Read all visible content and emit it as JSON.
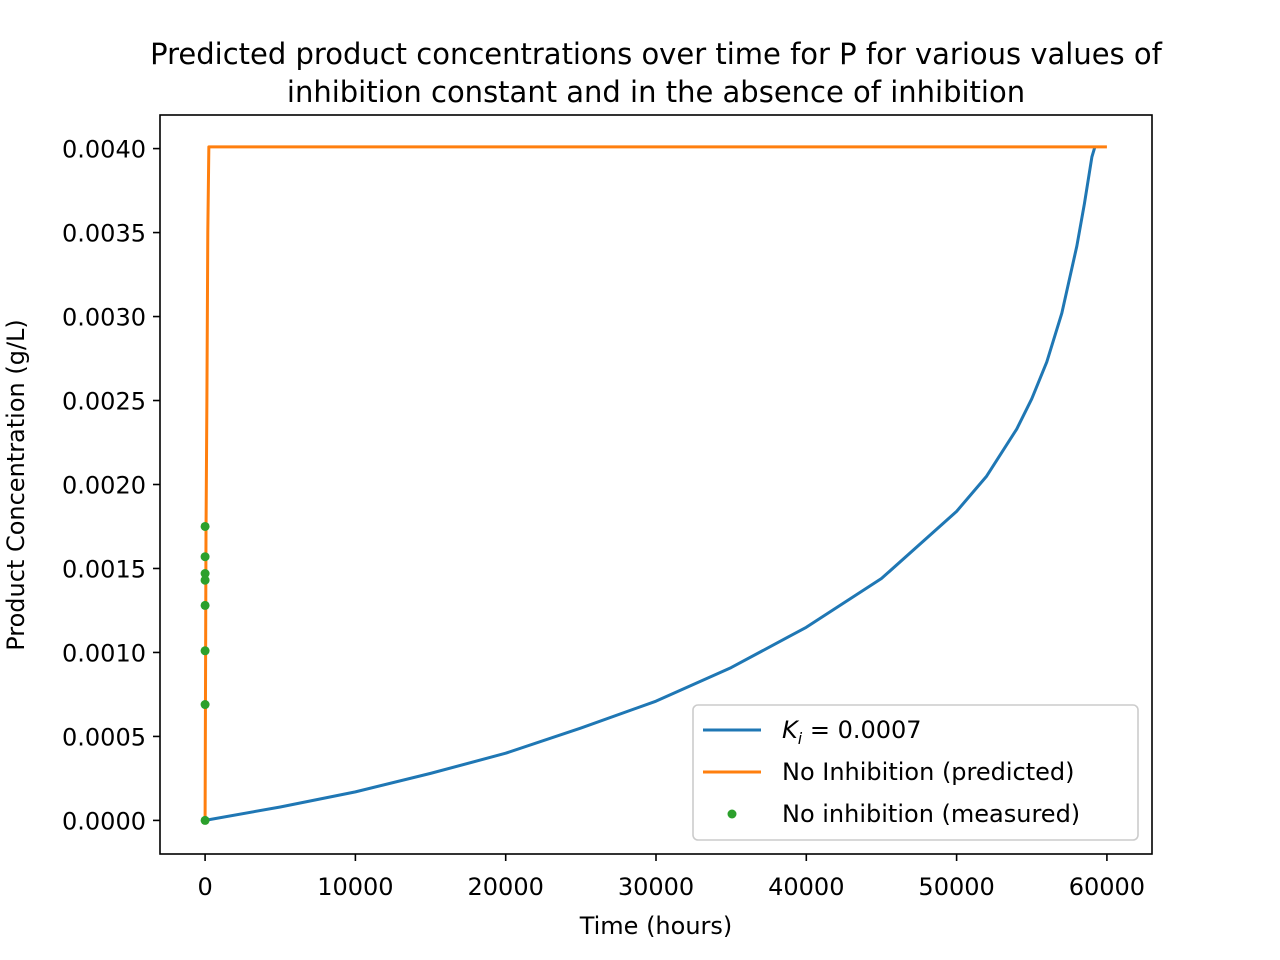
{
  "chart_data": {
    "type": "line",
    "title": [
      "Predicted product concentrations over time for P for various values of",
      "inhibition constant and in the absence of inhibition"
    ],
    "xlabel": "Time (hours)",
    "ylabel": "Product Concentration (g/L)",
    "xlim": [
      -3000,
      63000
    ],
    "ylim": [
      -0.0002,
      0.0042
    ],
    "xticks": [
      0,
      10000,
      20000,
      30000,
      40000,
      50000,
      60000
    ],
    "xtick_labels": [
      "0",
      "10000",
      "20000",
      "30000",
      "40000",
      "50000",
      "60000"
    ],
    "yticks": [
      0,
      0.0005,
      0.001,
      0.0015,
      0.002,
      0.0025,
      0.003,
      0.0035,
      0.004
    ],
    "ytick_labels": [
      "0.0000",
      "0.0005",
      "0.0010",
      "0.0015",
      "0.0020",
      "0.0025",
      "0.0030",
      "0.0035",
      "0.0040"
    ],
    "legend_position": "lower right",
    "grid": false,
    "series": [
      {
        "name": "K_i = 0.0007",
        "legend_label": {
          "k": "K",
          "sub": "i",
          "rest": " = 0.0007"
        },
        "style": "line",
        "color": "#1f77b4",
        "x": [
          0,
          5000,
          10000,
          15000,
          20000,
          25000,
          30000,
          35000,
          40000,
          45000,
          50000,
          52000,
          54000,
          55000,
          56000,
          57000,
          58000,
          58500,
          59000,
          59200
        ],
        "y": [
          0,
          8e-05,
          0.00017,
          0.00028,
          0.0004,
          0.00055,
          0.00071,
          0.00091,
          0.00115,
          0.00144,
          0.00184,
          0.00205,
          0.00233,
          0.00251,
          0.00273,
          0.00302,
          0.00342,
          0.00367,
          0.00395,
          0.00401
        ]
      },
      {
        "name": "No Inhibition (predicted)",
        "style": "line",
        "color": "#ff7f0e",
        "x": [
          0,
          60,
          120,
          180,
          250,
          60000
        ],
        "y": [
          0,
          0.0017,
          0.0025,
          0.0035,
          0.00401,
          0.00401
        ]
      },
      {
        "name": "No inhibition (measured)",
        "style": "points",
        "color": "#2ca02c",
        "x": [
          0,
          0,
          0,
          0,
          0,
          0,
          0,
          0
        ],
        "y": [
          0,
          0.00069,
          0.00101,
          0.00128,
          0.00143,
          0.00147,
          0.00157,
          0.00175
        ]
      }
    ]
  }
}
